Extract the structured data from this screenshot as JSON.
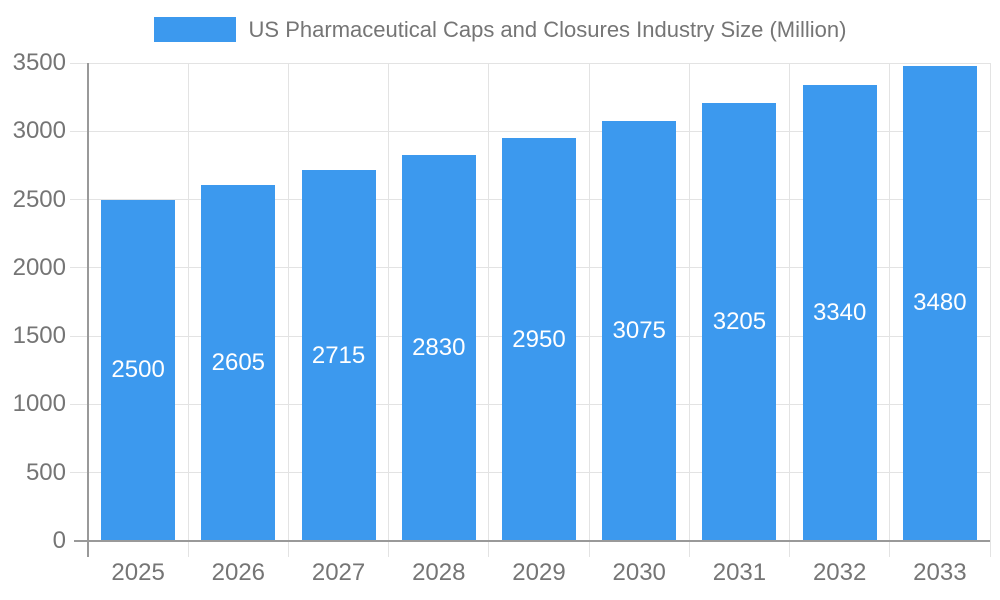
{
  "chart_data": {
    "type": "bar",
    "title": "US Pharmaceutical Caps and Closures Industry Size (Million)",
    "legend": {
      "position": "top",
      "label": "US Pharmaceutical Caps and Closures Industry Size (Million)"
    },
    "categories": [
      "2025",
      "2026",
      "2027",
      "2028",
      "2029",
      "2030",
      "2031",
      "2032",
      "2033"
    ],
    "series": [
      {
        "name": "US Pharmaceutical Caps and Closures Industry Size (Million)",
        "color": "#3c99ee",
        "values": [
          2500,
          2605,
          2715,
          2830,
          2950,
          3075,
          3205,
          3340,
          3480
        ]
      }
    ],
    "value_labels": {
      "visible": true,
      "position": "inside-center",
      "color": "#ffffff"
    },
    "xlabel": "",
    "ylabel": "",
    "ylim": [
      0,
      3500
    ],
    "ytick_step": 500,
    "yticks": [
      0,
      500,
      1000,
      1500,
      2000,
      2500,
      3000,
      3500
    ],
    "grid": {
      "horizontal": true,
      "vertical": true,
      "color": "#e3e3e3"
    },
    "axis_color": "#999999",
    "tick_label_color": "#757575",
    "background": "#ffffff"
  }
}
